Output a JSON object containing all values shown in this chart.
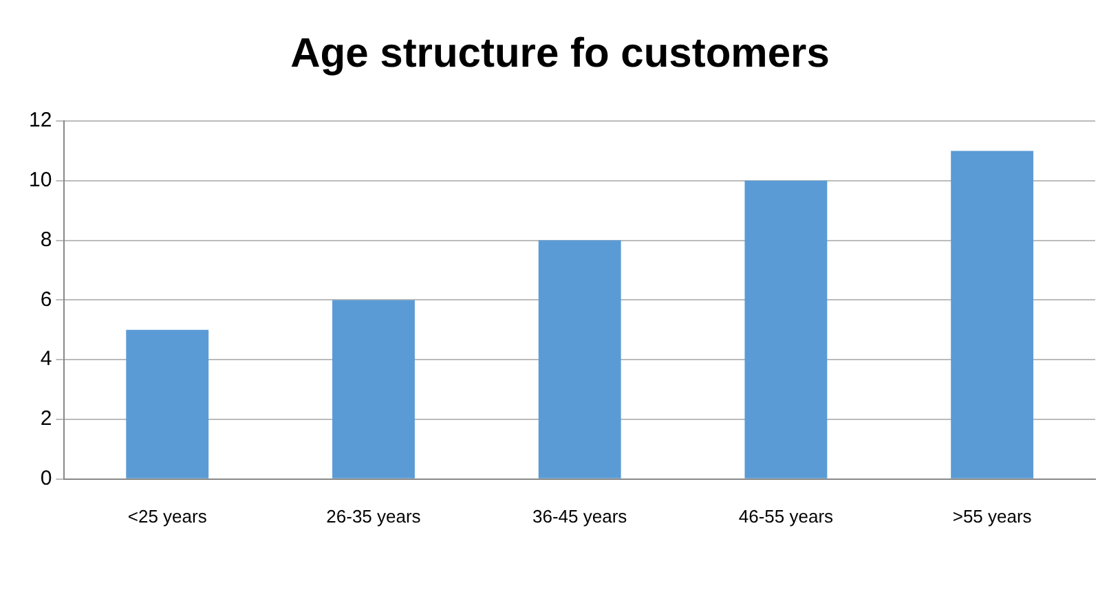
{
  "chart_data": {
    "type": "bar",
    "title": "Age structure fo customers",
    "categories": [
      "<25 years",
      "26-35 years",
      "36-45 years",
      "46-55 years",
      ">55 years"
    ],
    "values": [
      5,
      6,
      8,
      10,
      11
    ],
    "color": "#5b9bd5",
    "ylim": [
      0,
      12
    ],
    "yticks": [
      0,
      2,
      4,
      6,
      8,
      10,
      12
    ],
    "grid": "y"
  }
}
